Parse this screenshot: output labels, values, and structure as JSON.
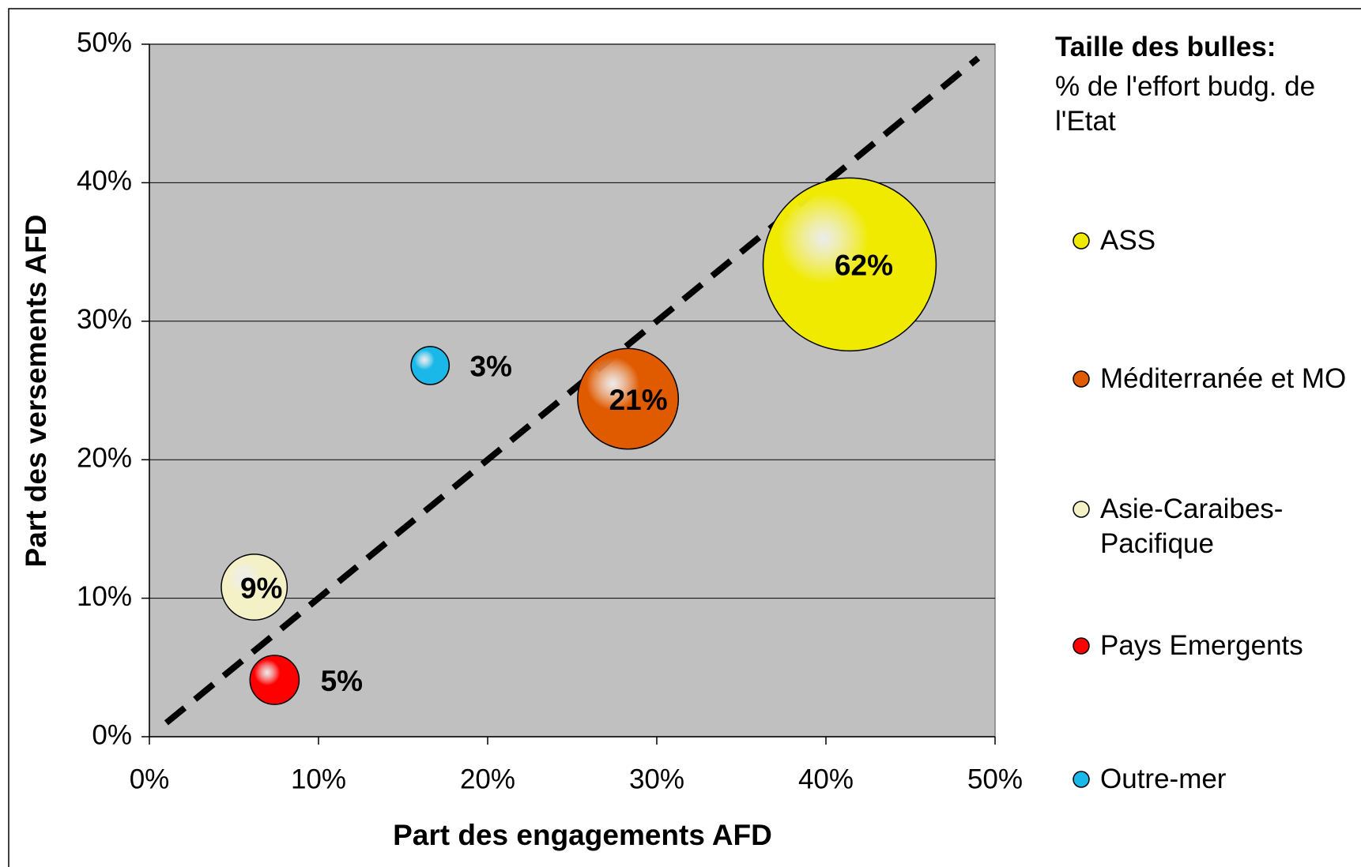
{
  "chart_data": {
    "type": "bubble",
    "x_label": "Part des engagements AFD",
    "y_label": "Part des versements AFD",
    "legend_title": "Taille des bulles:",
    "legend_subtitle": "% de l'effort budg. de l'Etat",
    "xlim": [
      0,
      50
    ],
    "ylim": [
      0,
      50
    ],
    "xticks": [
      {
        "value": 0,
        "label": "0%"
      },
      {
        "value": 10,
        "label": "10%"
      },
      {
        "value": 20,
        "label": "20%"
      },
      {
        "value": 30,
        "label": "30%"
      },
      {
        "value": 40,
        "label": "40%"
      },
      {
        "value": 50,
        "label": "50%"
      }
    ],
    "yticks": [
      {
        "value": 0,
        "label": "0%"
      },
      {
        "value": 10,
        "label": "10%"
      },
      {
        "value": 20,
        "label": "20%"
      },
      {
        "value": 30,
        "label": "30%"
      },
      {
        "value": 40,
        "label": "40%"
      },
      {
        "value": 50,
        "label": "50%"
      }
    ],
    "grid": true,
    "series": [
      {
        "name": "ASS",
        "color": "#f0ea00",
        "x": [
          41.4
        ],
        "values": [
          34.1
        ],
        "sizes": [
          62
        ],
        "value_labels": [
          "62%"
        ]
      },
      {
        "name": "Méditerranée et MO",
        "color": "#e05a00",
        "x": [
          28.3
        ],
        "values": [
          24.4
        ],
        "sizes": [
          21
        ],
        "value_labels": [
          "21%"
        ]
      },
      {
        "name": "Asie-Caraibes-Pacifique",
        "color": "#f4f1c6",
        "x": [
          6.2
        ],
        "values": [
          10.8
        ],
        "sizes": [
          9
        ],
        "value_labels": [
          "9%"
        ]
      },
      {
        "name": "Pays Emergents",
        "color": "#ff0000",
        "x": [
          7.4
        ],
        "values": [
          4.1
        ],
        "sizes": [
          5
        ],
        "value_labels": [
          "5%"
        ]
      },
      {
        "name": "Outre-mer",
        "color": "#1ab8e8",
        "x": [
          16.6
        ],
        "values": [
          26.8
        ],
        "sizes": [
          3
        ],
        "value_labels": [
          "3%"
        ]
      }
    ]
  }
}
